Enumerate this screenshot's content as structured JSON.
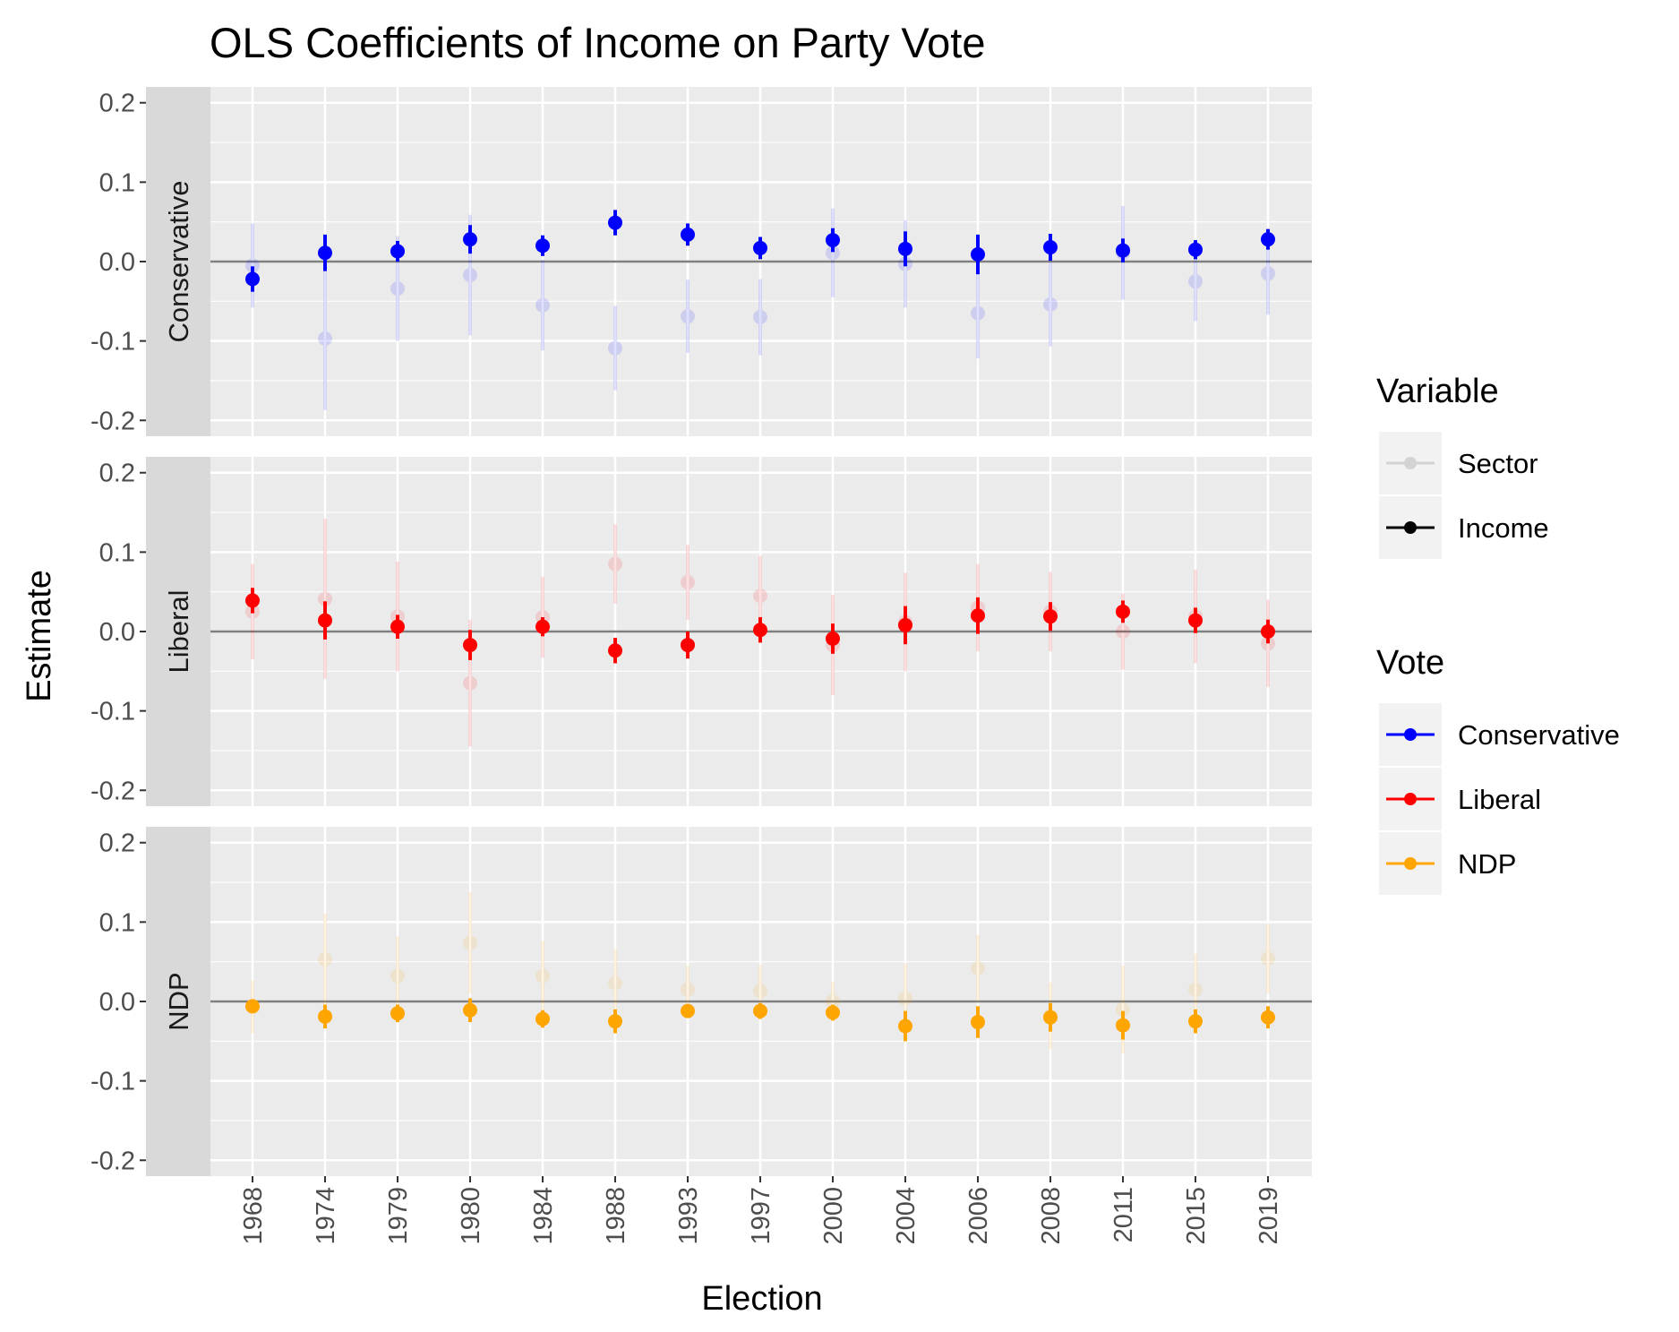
{
  "chart_data": {
    "type": "scatter",
    "title": "OLS Coefficients of Income on Party Vote",
    "xlabel": "Election",
    "ylabel": "Estimate",
    "ylim": [
      -0.22,
      0.22
    ],
    "yticks": [
      -0.2,
      -0.1,
      0.0,
      0.1,
      0.2
    ],
    "ytick_labels": [
      "-0.2",
      "-0.1",
      "0.0",
      "0.1",
      "0.2"
    ],
    "x": [
      "1968",
      "1974",
      "1979",
      "1980",
      "1984",
      "1988",
      "1993",
      "1997",
      "2000",
      "2004",
      "2006",
      "2008",
      "2011",
      "2015",
      "2019"
    ],
    "grid": true,
    "reference_line": 0,
    "legend_placement": "right",
    "legends": [
      {
        "title": "Variable",
        "entries": [
          {
            "label": "Sector",
            "key": "Sector",
            "style": "faded"
          },
          {
            "label": "Income",
            "key": "Income",
            "style": "solid"
          }
        ]
      },
      {
        "title": "Vote",
        "entries": [
          {
            "label": "Conservative",
            "color": "#0000FF"
          },
          {
            "label": "Liberal",
            "color": "#FF0000"
          },
          {
            "label": "NDP",
            "color": "#FFA500"
          }
        ]
      }
    ],
    "panels": [
      {
        "strip": "Conservative",
        "color": "#0000FF",
        "series": [
          {
            "name": "Sector",
            "values": [
              -0.005,
              -0.097,
              -0.034,
              -0.017,
              -0.055,
              -0.109,
              -0.069,
              -0.07,
              0.011,
              -0.003,
              -0.065,
              -0.054,
              0.011,
              -0.025,
              -0.015
            ],
            "lower": [
              -0.058,
              -0.187,
              -0.1,
              -0.093,
              -0.112,
              -0.162,
              -0.115,
              -0.118,
              -0.045,
              -0.058,
              -0.122,
              -0.107,
              -0.048,
              -0.075,
              -0.067
            ],
            "upper": [
              0.048,
              -0.007,
              0.032,
              0.059,
              0.002,
              -0.056,
              -0.023,
              -0.022,
              0.067,
              0.052,
              -0.008,
              -0.001,
              0.07,
              0.025,
              0.037
            ]
          },
          {
            "name": "Income",
            "values": [
              -0.022,
              0.011,
              0.013,
              0.028,
              0.02,
              0.049,
              0.034,
              0.017,
              0.027,
              0.016,
              0.009,
              0.018,
              0.014,
              0.015,
              0.028
            ],
            "lower": [
              -0.038,
              -0.012,
              0.0,
              0.01,
              0.007,
              0.033,
              0.02,
              0.003,
              0.012,
              -0.006,
              -0.016,
              0.001,
              -0.001,
              0.003,
              0.015
            ],
            "upper": [
              -0.006,
              0.034,
              0.026,
              0.046,
              0.033,
              0.065,
              0.048,
              0.031,
              0.042,
              0.038,
              0.034,
              0.035,
              0.029,
              0.027,
              0.041
            ]
          }
        ]
      },
      {
        "strip": "Liberal",
        "color": "#FF0000",
        "series": [
          {
            "name": "Sector",
            "values": [
              0.025,
              0.041,
              0.019,
              -0.065,
              0.018,
              0.085,
              0.062,
              0.045,
              -0.017,
              0.012,
              0.03,
              0.025,
              0.0,
              0.019,
              -0.015
            ],
            "lower": [
              -0.035,
              -0.06,
              -0.05,
              -0.145,
              -0.033,
              0.035,
              0.015,
              -0.005,
              -0.08,
              -0.05,
              -0.025,
              -0.025,
              -0.048,
              -0.04,
              -0.07
            ],
            "upper": [
              0.085,
              0.142,
              0.088,
              0.015,
              0.069,
              0.135,
              0.109,
              0.095,
              0.046,
              0.074,
              0.085,
              0.075,
              0.048,
              0.078,
              0.04
            ]
          },
          {
            "name": "Income",
            "values": [
              0.039,
              0.014,
              0.006,
              -0.017,
              0.006,
              -0.024,
              -0.017,
              0.002,
              -0.009,
              0.008,
              0.02,
              0.019,
              0.025,
              0.014,
              0.0
            ],
            "lower": [
              0.023,
              -0.01,
              -0.009,
              -0.036,
              -0.006,
              -0.04,
              -0.034,
              -0.014,
              -0.028,
              -0.016,
              -0.003,
              0.001,
              0.011,
              -0.002,
              -0.015
            ],
            "upper": [
              0.055,
              0.038,
              0.021,
              0.002,
              0.018,
              -0.008,
              0.0,
              0.018,
              0.01,
              0.032,
              0.043,
              0.037,
              0.039,
              0.03,
              0.015
            ]
          }
        ]
      },
      {
        "strip": "NDP",
        "color": "#FFA500",
        "series": [
          {
            "name": "Sector",
            "values": [
              -0.007,
              0.053,
              0.032,
              0.074,
              0.032,
              0.023,
              0.015,
              0.013,
              0.0,
              0.004,
              0.042,
              -0.018,
              -0.01,
              0.015,
              0.054
            ],
            "lower": [
              -0.04,
              -0.005,
              -0.018,
              0.01,
              -0.012,
              -0.02,
              -0.015,
              -0.02,
              -0.025,
              -0.04,
              0.0,
              -0.06,
              -0.065,
              -0.03,
              0.01
            ],
            "upper": [
              0.026,
              0.111,
              0.082,
              0.138,
              0.076,
              0.066,
              0.045,
              0.046,
              0.025,
              0.048,
              0.084,
              0.024,
              0.045,
              0.06,
              0.098
            ]
          },
          {
            "name": "Income",
            "values": [
              -0.006,
              -0.019,
              -0.015,
              -0.011,
              -0.022,
              -0.025,
              -0.012,
              -0.012,
              -0.014,
              -0.031,
              -0.026,
              -0.02,
              -0.03,
              -0.025,
              -0.02
            ],
            "lower": [
              -0.014,
              -0.034,
              -0.026,
              -0.026,
              -0.033,
              -0.04,
              -0.02,
              -0.022,
              -0.024,
              -0.05,
              -0.046,
              -0.038,
              -0.048,
              -0.04,
              -0.034
            ],
            "upper": [
              0.002,
              -0.004,
              -0.004,
              0.004,
              -0.011,
              -0.01,
              -0.004,
              -0.002,
              -0.004,
              -0.012,
              -0.006,
              -0.002,
              -0.012,
              -0.01,
              -0.006
            ]
          }
        ]
      }
    ]
  }
}
